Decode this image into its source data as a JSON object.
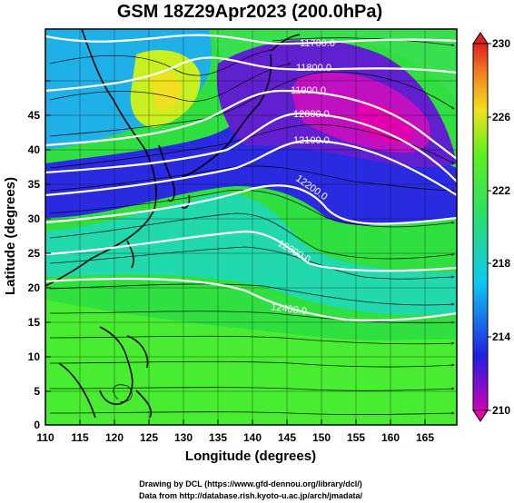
{
  "title": "GSM 18Z29Apr2023 (200.0hPa)",
  "chart_data": {
    "type": "heatmap",
    "title": "GSM 18Z29Apr2023 (200.0hPa)",
    "xlabel": "Longitude (degrees)",
    "ylabel": "Latitude  (degrees)",
    "xlim": [
      110,
      170
    ],
    "ylim": [
      0,
      50
    ],
    "x_ticks": [
      "110",
      "115",
      "120",
      "125",
      "130",
      "135",
      "140",
      "145",
      "150",
      "155",
      "160",
      "165"
    ],
    "y_ticks": [
      "0",
      "5",
      "10",
      "15",
      "20",
      "25",
      "30",
      "35",
      "40",
      "45"
    ],
    "colorbar": {
      "min": 210,
      "max": 230,
      "ticks": [
        "210",
        "214",
        "218",
        "222",
        "226",
        "230"
      ],
      "colors": [
        "#d000b8",
        "#2020e0",
        "#10c8f0",
        "#30e060",
        "#60f020",
        "#f0e020",
        "#f08020",
        "#e02020"
      ]
    },
    "contour_labels": [
      "11700.0",
      "11800.0",
      "11900.0",
      "12000.0",
      "12100.0",
      "12200.0",
      "12300.0",
      "12400.0"
    ],
    "grid": true,
    "overlays": [
      "wind streamlines",
      "coastlines",
      "geopotential height contours"
    ]
  },
  "credits": {
    "line1": "Drawing by DCL (https://www.gfd-dennou.org/library/dcl/)",
    "line2": "Data from http://database.rish.kyoto-u.ac.jp/arch/jmadata/"
  }
}
